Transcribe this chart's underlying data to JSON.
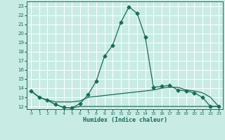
{
  "xlabel": "Humidex (Indice chaleur)",
  "bg_color": "#c8ece4",
  "grid_color": "#ffffff",
  "line_color": "#1a6b5a",
  "xlim": [
    -0.5,
    23.5
  ],
  "ylim": [
    11.7,
    23.5
  ],
  "xticks": [
    0,
    1,
    2,
    3,
    4,
    5,
    6,
    7,
    8,
    9,
    10,
    11,
    12,
    13,
    14,
    15,
    16,
    17,
    18,
    19,
    20,
    21,
    22,
    23
  ],
  "yticks": [
    12,
    13,
    14,
    15,
    16,
    17,
    18,
    19,
    20,
    21,
    22,
    23
  ],
  "line1_x": [
    0,
    1,
    2,
    3,
    4,
    5,
    6,
    7,
    8,
    9,
    10,
    11,
    12,
    13,
    14,
    15,
    16,
    17,
    18,
    19,
    20,
    21,
    22,
    23
  ],
  "line1_y": [
    13.7,
    13.0,
    12.7,
    12.2,
    11.9,
    11.85,
    12.3,
    13.3,
    14.8,
    17.5,
    18.7,
    21.2,
    22.9,
    22.2,
    19.6,
    14.1,
    14.2,
    14.3,
    13.8,
    13.7,
    13.5,
    13.0,
    12.0,
    12.0
  ],
  "line2_x": [
    0,
    1,
    2,
    3,
    4,
    5,
    6,
    7,
    8,
    9,
    10,
    11,
    12,
    13,
    14,
    15,
    16,
    17,
    18,
    19,
    20,
    21,
    22,
    23
  ],
  "line2_y": [
    13.7,
    13.0,
    12.7,
    12.5,
    12.5,
    12.5,
    12.6,
    13.0,
    13.1,
    13.2,
    13.3,
    13.4,
    13.5,
    13.6,
    13.7,
    13.8,
    14.0,
    14.1,
    14.1,
    13.8,
    13.7,
    13.5,
    13.0,
    12.0
  ],
  "line3_x": [
    0,
    1,
    2,
    3,
    4,
    5,
    6,
    7,
    8,
    9,
    10,
    11,
    12,
    13,
    14,
    15,
    16,
    17,
    18,
    19,
    20,
    21,
    22,
    23
  ],
  "line3_y": [
    13.7,
    13.0,
    12.7,
    12.2,
    11.9,
    11.85,
    12.0,
    12.0,
    12.0,
    12.0,
    12.0,
    12.0,
    12.0,
    12.0,
    12.0,
    12.0,
    12.0,
    12.0,
    12.0,
    12.0,
    12.0,
    12.0,
    12.0,
    12.0
  ],
  "marker_indices": [
    0,
    1,
    2,
    3,
    4,
    5,
    6,
    7,
    8,
    9,
    10,
    11,
    12,
    13,
    14,
    15,
    16,
    17,
    18,
    19,
    20,
    21,
    22,
    23
  ],
  "marker_size": 2.5,
  "linewidth": 0.9
}
